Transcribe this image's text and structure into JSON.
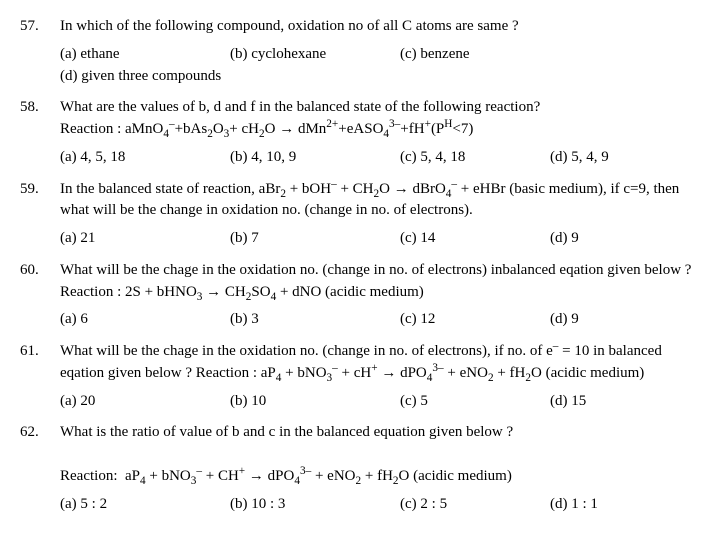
{
  "questions": [
    {
      "num": "57.",
      "text": "In which of the following compound, oxidation no of all C atoms are same ?",
      "options": {
        "a": "(a) ethane",
        "b": "(b) cyclohexane",
        "c": "(c) benzene",
        "d": "(d) given three compounds"
      }
    },
    {
      "num": "58.",
      "text_html": "What are the values of b, d and f in the balanced state of the following reaction?<br>Reaction : aMnO<sub>4</sub><sup>&#8211;</sup>+bAs<sub>2</sub>O<sub>3</sub>+ cH<sub>2</sub>O &#8594; dMn<sup>2+</sup>+eASO<sub>4</sub><sup>3&#8211;</sup>+fH<sup>+</sup>(P<sup>H</sup>&lt;7)",
      "options": {
        "a": "(a) 4, 5, 18",
        "b": "(b) 4, 10, 9",
        "c": "(c) 5, 4, 18",
        "d": "(d) 5, 4, 9"
      }
    },
    {
      "num": "59.",
      "text_html": "In the balanced state of reaction, aBr<sub>2</sub> + bOH<sup>&#8211;</sup> + CH<sub>2</sub>O &#8594; dBrO<sub>4</sub><sup>&#8211;</sup> + eHBr (basic medium), if c=9, then what will be the change in oxidation no. (change in no. of electrons).",
      "options": {
        "a": "(a) 21",
        "b": "(b) 7",
        "c": "(c) 14",
        "d": "(d) 9"
      }
    },
    {
      "num": "60.",
      "text_html": "What will be the chage in the oxidation no. (change in no. of electrons) inbalanced eqation given below ? Reaction : 2S + bHNO<sub>3</sub> &#8594; CH<sub>2</sub>SO<sub>4</sub> + dNO (acidic medium)",
      "options": {
        "a": "(a) 6",
        "b": "(b) 3",
        "c": "(c) 12",
        "d": "(d) 9"
      }
    },
    {
      "num": "61.",
      "text_html": "What will be the chage in the oxidation no. (change in no. of electrons), if no. of e<sup>&#8211;</sup> = 10 in balanced eqation given below ? Reaction : aP<sub>4</sub> + bNO<sub>3</sub><sup>&#8211;</sup> + cH<sup>+</sup> &#8594; dPO<sub>4</sub><sup>3&#8211;</sup> + eNO<sub>2</sub> + fH<sub>2</sub>O (acidic medium)",
      "options": {
        "a": "(a) 20",
        "b": "(b) 10",
        "c": "(c) 5",
        "d": "(d) 15"
      }
    },
    {
      "num": "62.",
      "text_html": "What is the ratio of value of b and c in the balanced equation given below ?<br><br>Reaction:&nbsp; aP<sub>4</sub> + bNO<sub>3</sub><sup>&#8211;</sup> + CH<sup>+</sup> &#8594; dPO<sub>4</sub><sup>3&#8211;</sup> + eNO<sub>2</sub> + fH<sub>2</sub>O (acidic medium)",
      "options": {
        "a": "(a) 5 : 2",
        "b": "(b) 10 : 3",
        "c": "(c) 2 : 5",
        "d": "(d) 1 : 1"
      }
    }
  ]
}
